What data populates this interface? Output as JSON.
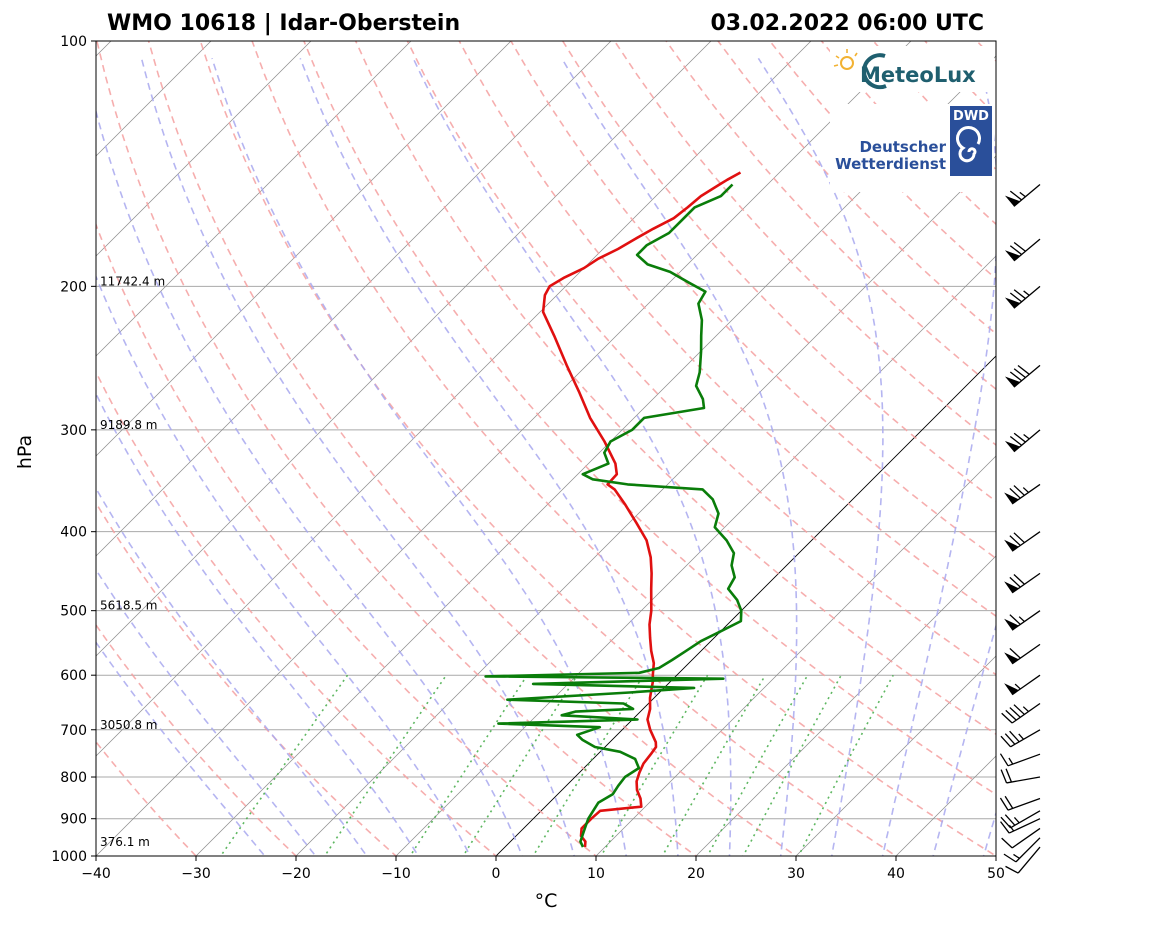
{
  "header": {
    "station": "WMO 10618 | Idar-Oberstein",
    "datetime": "03.02.2022 06:00 UTC"
  },
  "logos": {
    "meteolux": "MeteoLux",
    "dwd_badge": "DWD",
    "dwd_line1": "Deutscher",
    "dwd_line2": "Wetterdienst"
  },
  "colors": {
    "temperature": "#e01010",
    "dewpoint": "#0a7d0a",
    "dry_adiabat": "#f4a0a0",
    "moist_adiabat": "#a8a8ee",
    "mixing_ratio": "#4caf50",
    "isotherm": "#808080"
  },
  "chart_data": {
    "type": "line",
    "title": "",
    "xlabel": "°C",
    "ylabel": "hPa",
    "xlim": [
      -40,
      50
    ],
    "ylim_pressure": [
      1000,
      100
    ],
    "y_scale": "log",
    "skew": true,
    "x_ticks": [
      "−40",
      "−30",
      "−20",
      "−10",
      "0",
      "10",
      "20",
      "30",
      "40",
      "50"
    ],
    "y_ticks": [
      "1000",
      "900",
      "800",
      "700",
      "600",
      "500",
      "400",
      "300",
      "200",
      "100"
    ],
    "height_labels": [
      {
        "p": 975,
        "text": "376.1 m"
      },
      {
        "p": 700,
        "text": "3050.8 m"
      },
      {
        "p": 500,
        "text": "5618.5 m"
      },
      {
        "p": 300,
        "text": "9189.8 m"
      },
      {
        "p": 200,
        "text": "11742.4 m"
      }
    ],
    "series": [
      {
        "key": "temperature",
        "points": [
          [
            975,
            8.0
          ],
          [
            960,
            7.5
          ],
          [
            945,
            6.5
          ],
          [
            925,
            5.8
          ],
          [
            900,
            5.8
          ],
          [
            880,
            5.9
          ],
          [
            870,
            9.6
          ],
          [
            850,
            8.7
          ],
          [
            830,
            7.5
          ],
          [
            810,
            6.6
          ],
          [
            790,
            6.0
          ],
          [
            770,
            5.5
          ],
          [
            750,
            5.3
          ],
          [
            735,
            5.1
          ],
          [
            725,
            4.6
          ],
          [
            700,
            2.8
          ],
          [
            680,
            1.5
          ],
          [
            660,
            0.7
          ],
          [
            640,
            -0.4
          ],
          [
            625,
            -1.1
          ],
          [
            610,
            -1.8
          ],
          [
            600,
            -2.4
          ],
          [
            580,
            -3.5
          ],
          [
            560,
            -5.0
          ],
          [
            540,
            -6.4
          ],
          [
            520,
            -7.8
          ],
          [
            500,
            -9.0
          ],
          [
            470,
            -11.2
          ],
          [
            450,
            -12.7
          ],
          [
            430,
            -14.4
          ],
          [
            410,
            -16.5
          ],
          [
            390,
            -19.3
          ],
          [
            370,
            -22.3
          ],
          [
            355,
            -24.8
          ],
          [
            350,
            -26.0
          ],
          [
            340,
            -26.1
          ],
          [
            330,
            -27.3
          ],
          [
            310,
            -30.6
          ],
          [
            290,
            -34.4
          ],
          [
            270,
            -38.0
          ],
          [
            250,
            -42.0
          ],
          [
            230,
            -46.2
          ],
          [
            215,
            -49.7
          ],
          [
            205,
            -51.2
          ],
          [
            200,
            -51.6
          ],
          [
            195,
            -51.0
          ],
          [
            190,
            -50.0
          ],
          [
            185,
            -49.5
          ],
          [
            180,
            -48.5
          ],
          [
            175,
            -47.8
          ],
          [
            170,
            -47.0
          ],
          [
            165,
            -46.0
          ],
          [
            160,
            -45.7
          ],
          [
            155,
            -45.5
          ],
          [
            150,
            -44.8
          ],
          [
            148,
            -44.5
          ],
          [
            145,
            -43.9
          ]
        ]
      },
      {
        "key": "dewpoint",
        "points": [
          [
            975,
            7.8
          ],
          [
            960,
            7.0
          ],
          [
            940,
            6.5
          ],
          [
            920,
            6.0
          ],
          [
            900,
            5.5
          ],
          [
            880,
            5.2
          ],
          [
            860,
            4.9
          ],
          [
            840,
            5.5
          ],
          [
            820,
            5.2
          ],
          [
            800,
            5.0
          ],
          [
            780,
            5.5
          ],
          [
            760,
            4.2
          ],
          [
            745,
            2.0
          ],
          [
            735,
            -1.0
          ],
          [
            720,
            -3.0
          ],
          [
            710,
            -4.0
          ],
          [
            695,
            -2.5
          ],
          [
            688,
            -13.0
          ],
          [
            680,
            0.5
          ],
          [
            672,
            -7.5
          ],
          [
            665,
            -6.5
          ],
          [
            660,
            -1.0
          ],
          [
            650,
            -2.5
          ],
          [
            643,
            -14.5
          ],
          [
            630,
            -3.0
          ],
          [
            622,
            3.0
          ],
          [
            615,
            -13.5
          ],
          [
            606,
            5.0
          ],
          [
            602,
            -19.0
          ],
          [
            596,
            -4.0
          ],
          [
            588,
            -2.5
          ],
          [
            575,
            -2.0
          ],
          [
            560,
            -1.5
          ],
          [
            545,
            -1.0
          ],
          [
            530,
            0.0
          ],
          [
            515,
            1.0
          ],
          [
            500,
            0.0
          ],
          [
            485,
            -1.5
          ],
          [
            470,
            -3.5
          ],
          [
            455,
            -4.0
          ],
          [
            440,
            -5.5
          ],
          [
            425,
            -6.5
          ],
          [
            410,
            -8.5
          ],
          [
            395,
            -11.0
          ],
          [
            380,
            -12.0
          ],
          [
            365,
            -14.0
          ],
          [
            355,
            -16.0
          ],
          [
            350,
            -24.0
          ],
          [
            345,
            -28.0
          ],
          [
            340,
            -29.5
          ],
          [
            330,
            -28.0
          ],
          [
            320,
            -29.5
          ],
          [
            310,
            -30.0
          ],
          [
            300,
            -29.0
          ],
          [
            290,
            -29.0
          ],
          [
            282,
            -24.0
          ],
          [
            275,
            -25.0
          ],
          [
            265,
            -27.0
          ],
          [
            255,
            -28.0
          ],
          [
            240,
            -30.0
          ],
          [
            230,
            -31.5
          ],
          [
            220,
            -33.0
          ],
          [
            210,
            -35.0
          ],
          [
            203,
            -35.5
          ],
          [
            198,
            -38.0
          ],
          [
            192,
            -41.0
          ],
          [
            188,
            -44.0
          ],
          [
            183,
            -46.0
          ],
          [
            178,
            -46.0
          ],
          [
            172,
            -45.0
          ],
          [
            166,
            -45.0
          ],
          [
            160,
            -45.0
          ],
          [
            155,
            -43.5
          ],
          [
            150,
            -43.5
          ]
        ]
      }
    ],
    "wind_barbs": [
      {
        "p": 975,
        "dir": 220,
        "kt": 10
      },
      {
        "p": 950,
        "dir": 225,
        "kt": 15
      },
      {
        "p": 925,
        "dir": 235,
        "kt": 10
      },
      {
        "p": 900,
        "dir": 245,
        "kt": 15
      },
      {
        "p": 880,
        "dir": 240,
        "kt": 25
      },
      {
        "p": 850,
        "dir": 250,
        "kt": 20
      },
      {
        "p": 800,
        "dir": 260,
        "kt": 20
      },
      {
        "p": 750,
        "dir": 250,
        "kt": 15
      },
      {
        "p": 700,
        "dir": 240,
        "kt": 35
      },
      {
        "p": 650,
        "dir": 235,
        "kt": 45
      },
      {
        "p": 600,
        "dir": 235,
        "kt": 55
      },
      {
        "p": 550,
        "dir": 235,
        "kt": 60
      },
      {
        "p": 500,
        "dir": 235,
        "kt": 65
      },
      {
        "p": 450,
        "dir": 235,
        "kt": 70
      },
      {
        "p": 400,
        "dir": 235,
        "kt": 70
      },
      {
        "p": 350,
        "dir": 235,
        "kt": 75
      },
      {
        "p": 300,
        "dir": 230,
        "kt": 75
      },
      {
        "p": 250,
        "dir": 230,
        "kt": 80
      },
      {
        "p": 200,
        "dir": 230,
        "kt": 75
      },
      {
        "p": 175,
        "dir": 230,
        "kt": 70
      },
      {
        "p": 150,
        "dir": 230,
        "kt": 65
      }
    ]
  }
}
